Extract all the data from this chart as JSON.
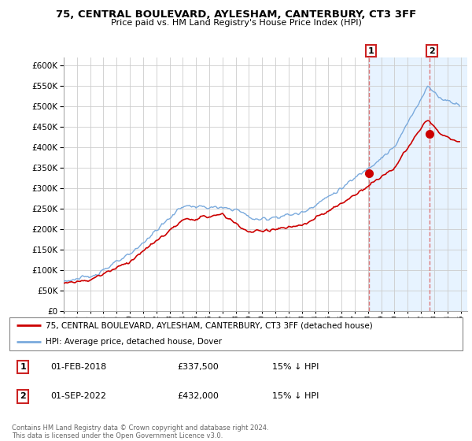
{
  "title": "75, CENTRAL BOULEVARD, AYLESHAM, CANTERBURY, CT3 3FF",
  "subtitle": "Price paid vs. HM Land Registry's House Price Index (HPI)",
  "legend_line1": "75, CENTRAL BOULEVARD, AYLESHAM, CANTERBURY, CT3 3FF (detached house)",
  "legend_line2": "HPI: Average price, detached house, Dover",
  "annotation1_date": "01-FEB-2018",
  "annotation1_price": "£337,500",
  "annotation1_hpi": "15% ↓ HPI",
  "annotation2_date": "01-SEP-2022",
  "annotation2_price": "£432,000",
  "annotation2_hpi": "15% ↓ HPI",
  "footnote": "Contains HM Land Registry data © Crown copyright and database right 2024.\nThis data is licensed under the Open Government Licence v3.0.",
  "price_color": "#cc0000",
  "hpi_color": "#7aaadd",
  "vline_color": "#dd7777",
  "shaded_color": "#ddeeff",
  "ylim": [
    0,
    620000
  ],
  "yticks": [
    0,
    50000,
    100000,
    150000,
    200000,
    250000,
    300000,
    350000,
    400000,
    450000,
    500000,
    550000,
    600000
  ],
  "xmin": 1995,
  "xmax": 2025.5,
  "purchase1_x": 2018.083,
  "purchase1_y": 337500,
  "purchase2_x": 2022.667,
  "purchase2_y": 432000
}
